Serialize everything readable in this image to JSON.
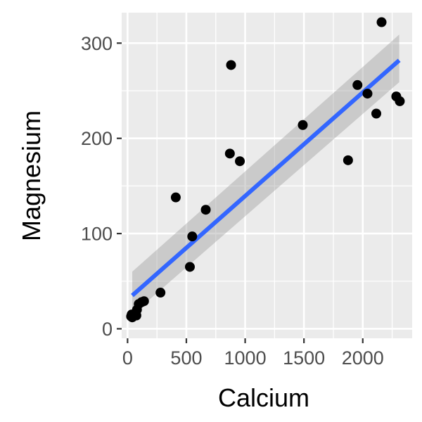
{
  "chart_data": {
    "type": "scatter",
    "title": "",
    "xlabel": "Calcium",
    "ylabel": "Magnesium",
    "xlim": [
      -50,
      2420
    ],
    "ylim": [
      -10,
      332
    ],
    "x_ticks": [
      0,
      500,
      1000,
      1500,
      2000
    ],
    "x_tick_labels": [
      "0",
      "500",
      "1000",
      "1500",
      "2000"
    ],
    "y_ticks": [
      0,
      100,
      200,
      300
    ],
    "y_tick_labels": [
      "0",
      "100",
      "200",
      "300"
    ],
    "grid": true,
    "points": [
      {
        "x": 30,
        "y": 13
      },
      {
        "x": 35,
        "y": 15
      },
      {
        "x": 40,
        "y": 12
      },
      {
        "x": 45,
        "y": 14
      },
      {
        "x": 60,
        "y": 14
      },
      {
        "x": 75,
        "y": 14
      },
      {
        "x": 80,
        "y": 20
      },
      {
        "x": 95,
        "y": 26
      },
      {
        "x": 120,
        "y": 28
      },
      {
        "x": 140,
        "y": 29
      },
      {
        "x": 280,
        "y": 38
      },
      {
        "x": 410,
        "y": 138
      },
      {
        "x": 530,
        "y": 65
      },
      {
        "x": 550,
        "y": 97
      },
      {
        "x": 665,
        "y": 125
      },
      {
        "x": 870,
        "y": 184
      },
      {
        "x": 880,
        "y": 277
      },
      {
        "x": 955,
        "y": 176
      },
      {
        "x": 1490,
        "y": 214
      },
      {
        "x": 1875,
        "y": 177
      },
      {
        "x": 1955,
        "y": 256
      },
      {
        "x": 2040,
        "y": 247
      },
      {
        "x": 2115,
        "y": 226
      },
      {
        "x": 2160,
        "y": 322
      },
      {
        "x": 2285,
        "y": 244
      },
      {
        "x": 2315,
        "y": 239
      }
    ],
    "trend_line": {
      "method": "linear fit",
      "x": [
        40,
        2310
      ],
      "y": [
        35,
        282
      ],
      "band_lower": [
        15,
        259
      ],
      "band_upper": [
        60,
        309
      ]
    },
    "colors": {
      "panel_background": "#ebebeb",
      "grid": "#ffffff",
      "points": "#000000",
      "trend_line": "#3366ff",
      "confidence_band": "#999999"
    }
  }
}
